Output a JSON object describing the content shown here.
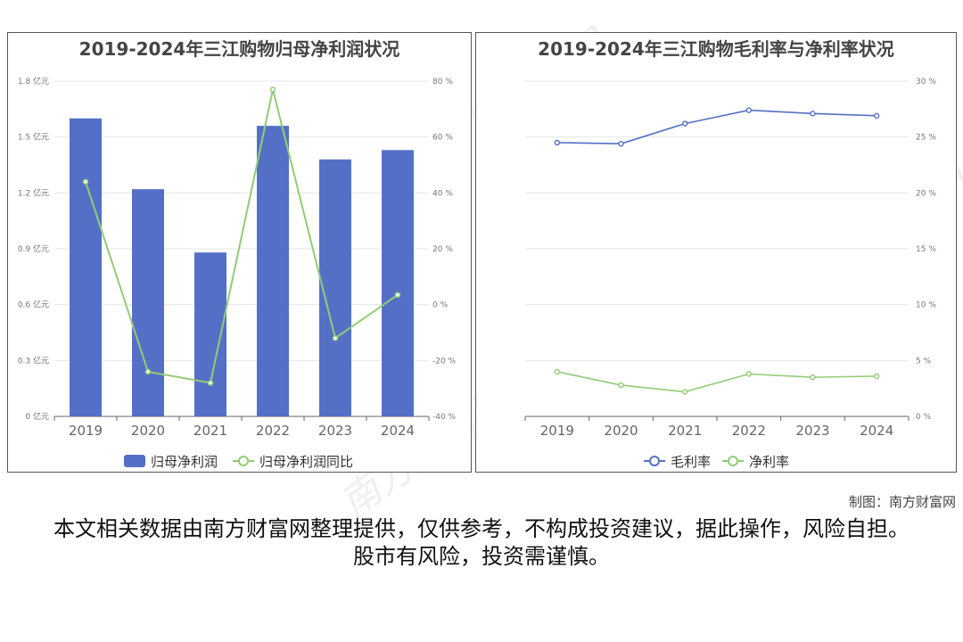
{
  "credit": "制图：南方财富网",
  "disclaimer": "本文相关数据由南方财富网整理提供，仅供参考，不构成投资建议，据此操作，风险自担。股市有风险，投资需谨慎。",
  "watermark": "南方财富网 southmoney.com",
  "colors": {
    "bar": "#5470c6",
    "gross": "#5470c6",
    "net": "#91cc75",
    "yoy": "#91cc75"
  },
  "chart_data": [
    {
      "type": "bar",
      "title": "2019-2024年三江购物归母净利润状况",
      "categories": [
        "2019",
        "2020",
        "2021",
        "2022",
        "2023",
        "2024"
      ],
      "series": [
        {
          "name": "归母净利润",
          "type": "bar",
          "axis": "left",
          "values": [
            1.6,
            1.22,
            0.88,
            1.56,
            1.38,
            1.43
          ]
        },
        {
          "name": "归母净利润同比",
          "type": "line",
          "axis": "right",
          "values": [
            44,
            -24,
            -28,
            77,
            -12,
            3.5
          ]
        }
      ],
      "y_left": {
        "min": 0,
        "max": 1.8,
        "ticks": [
          "0 亿元",
          "0.3 亿元",
          "0.6 亿元",
          "0.9 亿元",
          "1.2 亿元",
          "1.5 亿元",
          "1.8 亿元"
        ]
      },
      "y_right": {
        "min": -40,
        "max": 80,
        "ticks": [
          "-40 %",
          "-20 %",
          "0 %",
          "20 %",
          "40 %",
          "60 %",
          "80 %"
        ]
      },
      "legend": "bottom"
    },
    {
      "type": "line",
      "title": "2019-2024年三江购物毛利率与净利率状况",
      "categories": [
        "2019",
        "2020",
        "2021",
        "2022",
        "2023",
        "2024"
      ],
      "series": [
        {
          "name": "毛利率",
          "values": [
            24.5,
            24.4,
            26.2,
            27.4,
            27.1,
            26.9
          ]
        },
        {
          "name": "净利率",
          "values": [
            4.0,
            2.8,
            2.2,
            3.8,
            3.5,
            3.6
          ]
        }
      ],
      "y_right": {
        "min": 0,
        "max": 30,
        "ticks": [
          "0 %",
          "5 %",
          "10 %",
          "15 %",
          "20 %",
          "25 %",
          "30 %"
        ]
      },
      "legend": "bottom"
    }
  ]
}
